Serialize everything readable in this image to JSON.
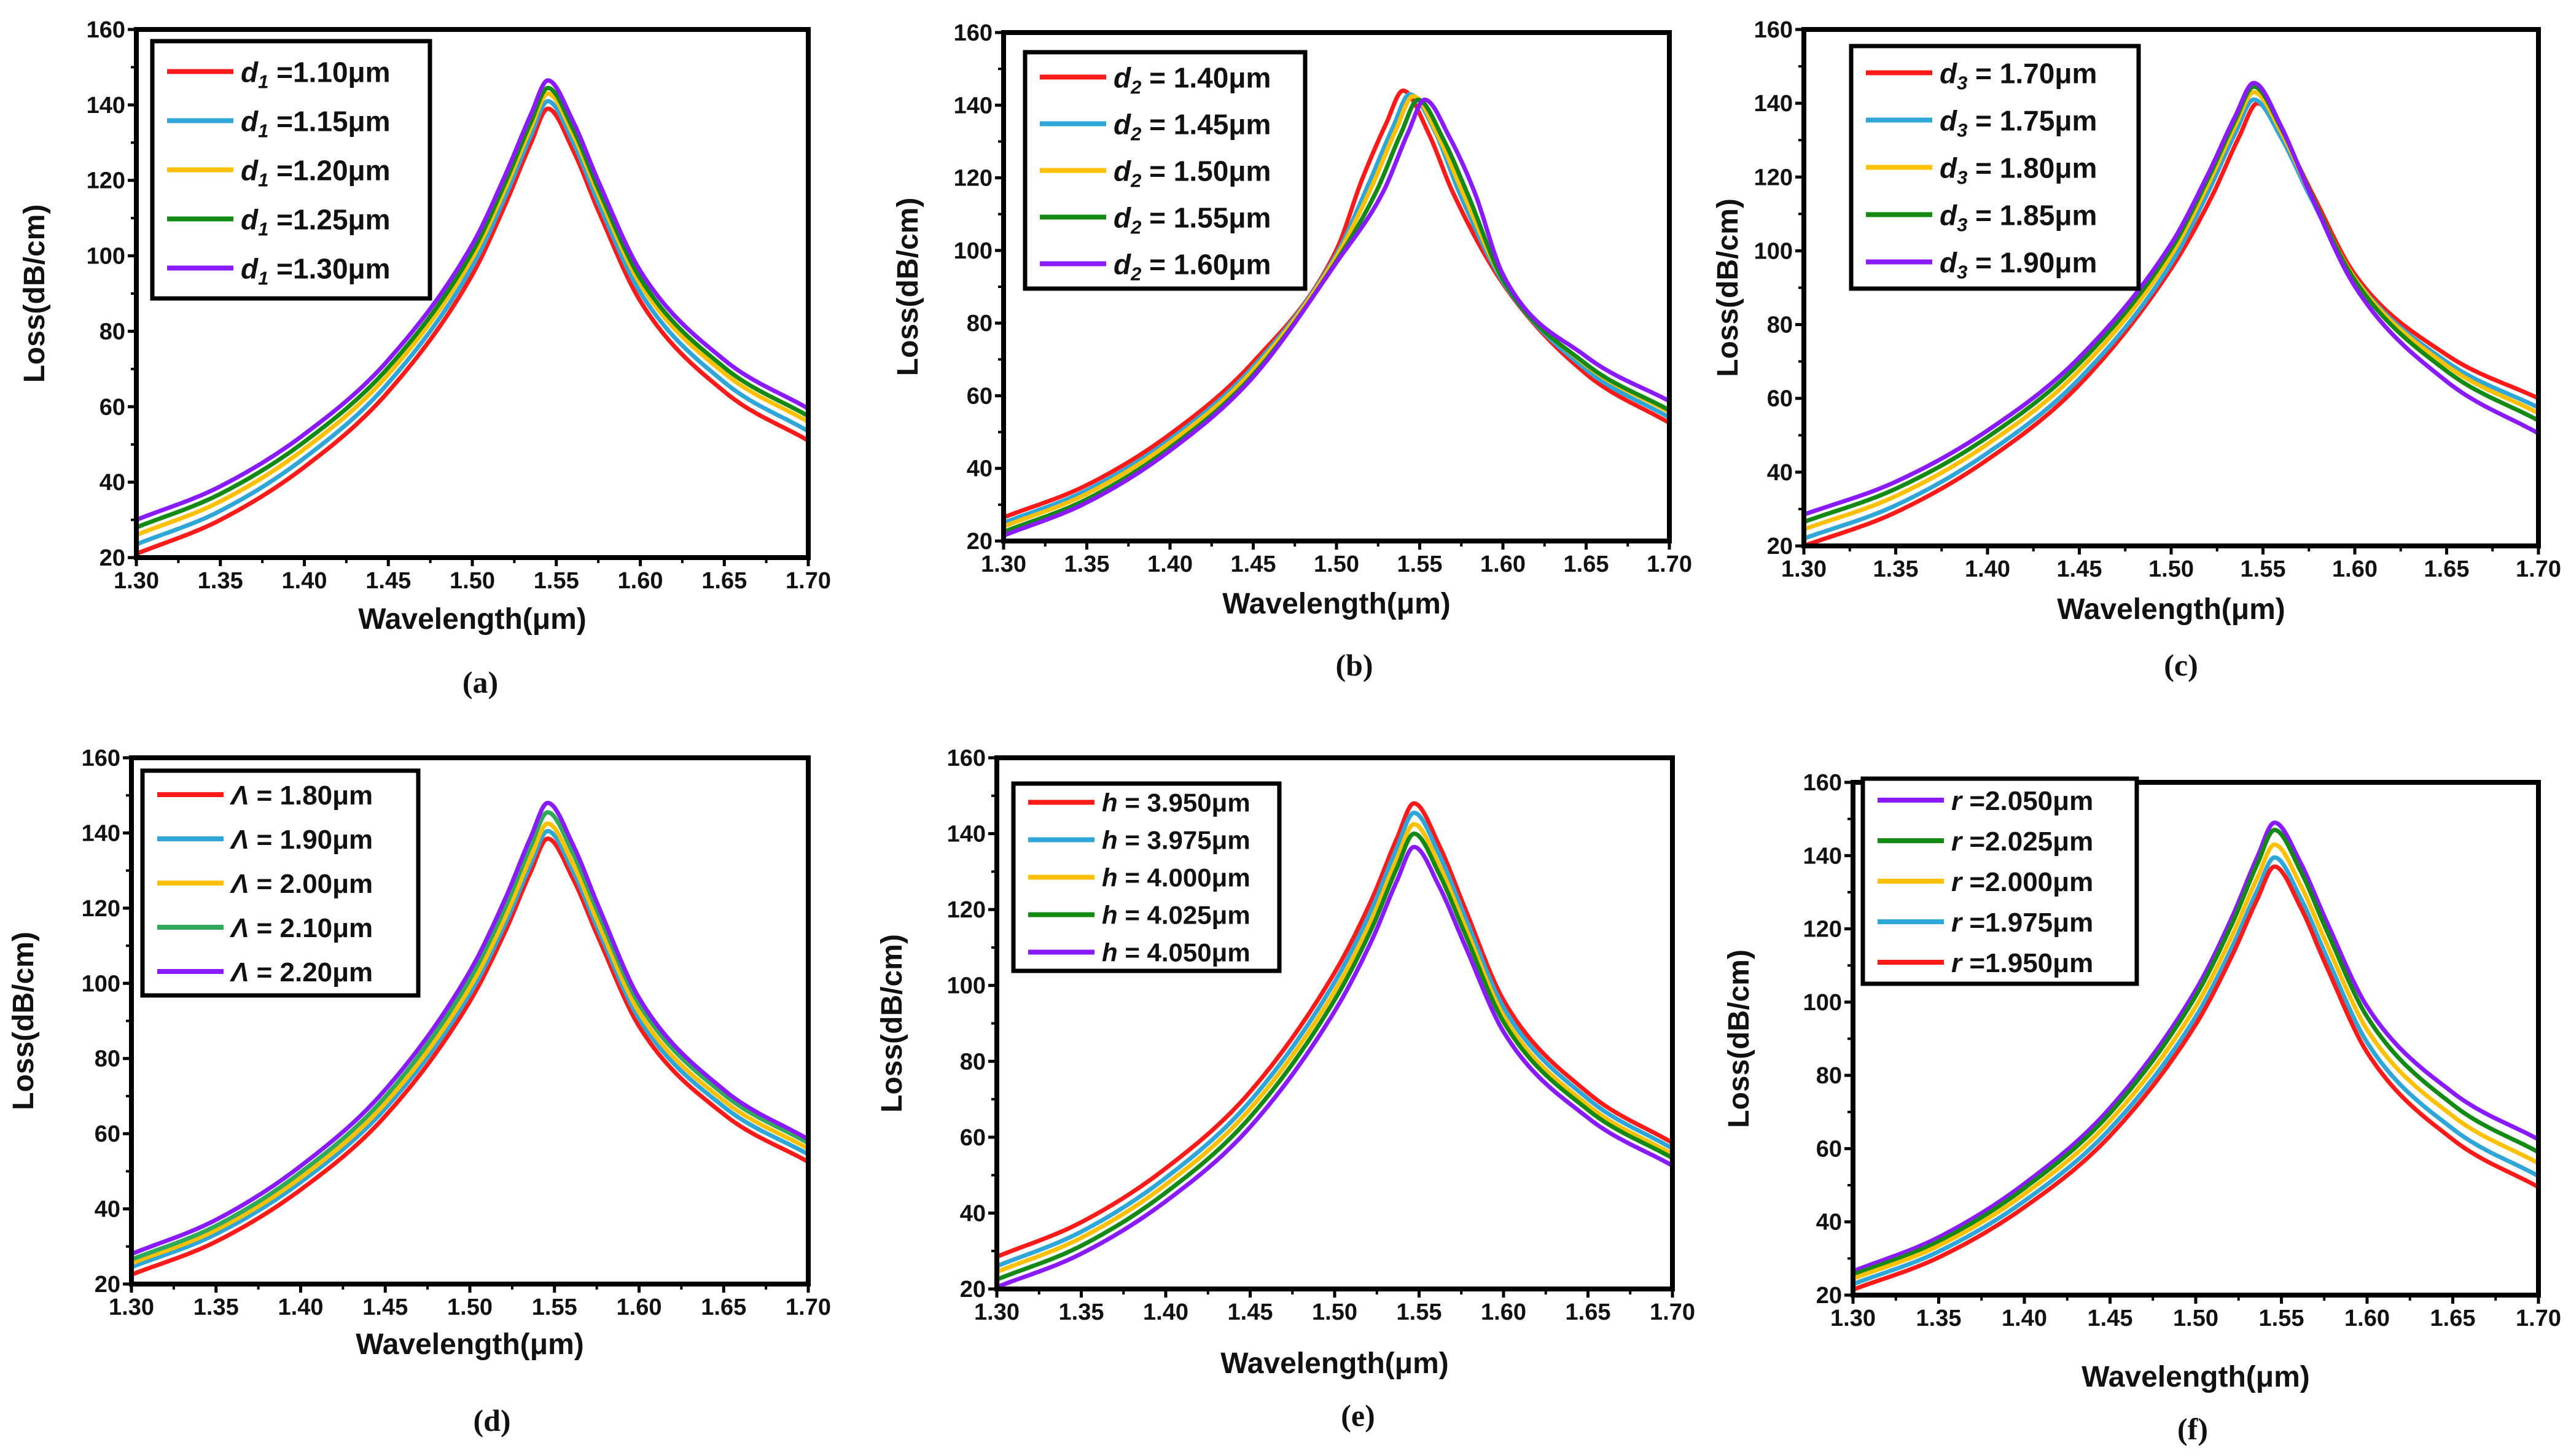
{
  "colors": {
    "red": "#ff1a1a",
    "blue": "#2ea6d8",
    "yellow": "#ffc000",
    "green": "#138a13",
    "green_light": "#2eaa5a",
    "purple": "#8a1aff"
  },
  "chart_data": [
    {
      "type": "line",
      "caption": "(a)",
      "xlabel": "Wavelength(μm)",
      "ylabel": "Loss(dB/cm)",
      "xlim": [
        1.3,
        1.7
      ],
      "ylim": [
        20,
        160
      ],
      "xticks": [
        "1.30",
        "1.35",
        "1.40",
        "1.45",
        "1.50",
        "1.55",
        "1.60",
        "1.65",
        "1.70"
      ],
      "yticks": [
        "20",
        "40",
        "60",
        "80",
        "100",
        "120",
        "140",
        "160"
      ],
      "legend_position": "top-left",
      "x": [
        1.3,
        1.35,
        1.4,
        1.45,
        1.5,
        1.52,
        1.535,
        1.545,
        1.56,
        1.575,
        1.6,
        1.65,
        1.7
      ],
      "series": [
        {
          "symbol": "d",
          "sub": "1",
          "value": " =1.10μm",
          "color": "red",
          "y": [
            21,
            30,
            44,
            64,
            95,
            114,
            130,
            139,
            128,
            112,
            88,
            64,
            51
          ]
        },
        {
          "symbol": "d",
          "sub": "1",
          "value": " =1.15μm",
          "color": "blue",
          "y": [
            23.5,
            32.4,
            46.4,
            66.3,
            97.2,
            116.1,
            132.1,
            141,
            130.1,
            114.1,
            90.3,
            66.5,
            53.5
          ]
        },
        {
          "symbol": "d",
          "sub": "1",
          "value": " =1.20μm",
          "color": "yellow",
          "y": [
            26,
            34.9,
            48.8,
            68.6,
            99.4,
            118.2,
            134.1,
            143,
            132.1,
            116.3,
            92.5,
            68.9,
            56
          ]
        },
        {
          "symbol": "d",
          "sub": "1",
          "value": " =1.25μm",
          "color": "green",
          "y": [
            28,
            36.9,
            50.7,
            70.4,
            101,
            119.8,
            135.6,
            144.5,
            133.6,
            117.8,
            94,
            70.4,
            57.5
          ]
        },
        {
          "symbol": "d",
          "sub": "1",
          "value": " =1.30μm",
          "color": "purple",
          "y": [
            30,
            38.9,
            52.7,
            72.4,
            103,
            121.8,
            137.6,
            146.5,
            135.6,
            119.8,
            96,
            72.4,
            59.5
          ]
        }
      ]
    },
    {
      "type": "line",
      "caption": "(b)",
      "xlabel": "Wavelength(μm)",
      "ylabel": "Loss(dB/cm)",
      "xlim": [
        1.3,
        1.7
      ],
      "ylim": [
        20,
        160
      ],
      "xticks": [
        "1.30",
        "1.35",
        "1.40",
        "1.45",
        "1.50",
        "1.55",
        "1.60",
        "1.65",
        "1.70"
      ],
      "yticks": [
        "20",
        "40",
        "60",
        "80",
        "100",
        "120",
        "140",
        "160"
      ],
      "legend_position": "top-left",
      "series": [
        {
          "symbol": "d",
          "sub": "2",
          "value": " = 1.40μm",
          "color": "red",
          "x": [
            1.3,
            1.35,
            1.4,
            1.45,
            1.5,
            1.515,
            1.53,
            1.54,
            1.555,
            1.57,
            1.6,
            1.65,
            1.7
          ],
          "y": [
            26.5,
            35.4,
            49.4,
            69.3,
            100.2,
            119.1,
            135.1,
            144,
            132.6,
            115.9,
            90.9,
            66,
            52.5
          ]
        },
        {
          "symbol": "d",
          "sub": "2",
          "value": " = 1.45μm",
          "color": "blue",
          "x": [
            1.3,
            1.35,
            1.4,
            1.45,
            1.5,
            1.519,
            1.534,
            1.544,
            1.559,
            1.574,
            1.6,
            1.65,
            1.7
          ],
          "y": [
            25,
            34,
            48,
            68,
            99,
            118,
            134,
            143,
            132.9,
            115.7,
            91.4,
            67.2,
            54
          ]
        },
        {
          "symbol": "d",
          "sub": "2",
          "value": " = 1.50μm",
          "color": "yellow",
          "x": [
            1.3,
            1.35,
            1.4,
            1.45,
            1.5,
            1.521,
            1.536,
            1.546,
            1.561,
            1.576,
            1.6,
            1.65,
            1.7
          ],
          "y": [
            24,
            33,
            47.1,
            67.1,
            98.3,
            117.4,
            133.5,
            142.5,
            131.6,
            115.8,
            92,
            68.4,
            55.5
          ]
        },
        {
          "symbol": "d",
          "sub": "2",
          "value": " = 1.55μm",
          "color": "green",
          "x": [
            1.3,
            1.35,
            1.4,
            1.45,
            1.5,
            1.524,
            1.539,
            1.549,
            1.564,
            1.579,
            1.6,
            1.65,
            1.7
          ],
          "y": [
            22.5,
            31.5,
            45.7,
            65.8,
            97.1,
            116.3,
            132.5,
            141.5,
            130.8,
            115.3,
            92,
            68.7,
            56
          ]
        },
        {
          "symbol": "d",
          "sub": "2",
          "value": " = 1.60μm",
          "color": "purple",
          "x": [
            1.3,
            1.35,
            1.4,
            1.45,
            1.5,
            1.528,
            1.543,
            1.553,
            1.568,
            1.583,
            1.6,
            1.65,
            1.7
          ],
          "y": [
            21.5,
            30.6,
            44.9,
            65.2,
            96.7,
            116.1,
            132.4,
            141.5,
            131.1,
            116,
            93.4,
            70.8,
            58.5
          ]
        }
      ]
    },
    {
      "type": "line",
      "caption": "(c)",
      "xlabel": "Wavelength(μm)",
      "ylabel": "Loss(dB/cm)",
      "xlim": [
        1.3,
        1.7
      ],
      "ylim": [
        20,
        160
      ],
      "xticks": [
        "1.30",
        "1.35",
        "1.40",
        "1.45",
        "1.50",
        "1.55",
        "1.60",
        "1.65",
        "1.70"
      ],
      "yticks": [
        "20",
        "40",
        "60",
        "80",
        "100",
        "120",
        "140",
        "160"
      ],
      "legend_position": "top-left",
      "x": [
        1.3,
        1.35,
        1.4,
        1.45,
        1.5,
        1.52,
        1.535,
        1.545,
        1.56,
        1.575,
        1.6,
        1.65,
        1.7
      ],
      "series": [
        {
          "symbol": "d",
          "sub": "3",
          "value": " = 1.70μm",
          "color": "red",
          "x": [
            1.3,
            1.35,
            1.4,
            1.45,
            1.5,
            1.522,
            1.537,
            1.547,
            1.562,
            1.577,
            1.6,
            1.65,
            1.7
          ],
          "y": [
            20,
            29.1,
            43.4,
            63.7,
            95.2,
            114.6,
            130.9,
            140,
            130,
            115.4,
            93.6,
            71.8,
            60
          ]
        },
        {
          "symbol": "d",
          "sub": "3",
          "value": " = 1.75μm",
          "color": "blue",
          "y": [
            22,
            31,
            45.2,
            65.3,
            96.6,
            115.8,
            132,
            141,
            130.6,
            115.4,
            92.6,
            69.9,
            57.5
          ]
        },
        {
          "symbol": "d",
          "sub": "3",
          "value": " = 1.80μm",
          "color": "yellow",
          "y": [
            24.5,
            33.5,
            47.6,
            67.6,
            98.8,
            117.9,
            134,
            143,
            132.1,
            116.3,
            92.5,
            68.9,
            56
          ]
        },
        {
          "symbol": "d",
          "sub": "3",
          "value": " = 1.85μm",
          "color": "green",
          "y": [
            26.5,
            35.5,
            49.5,
            69.5,
            100.5,
            119.5,
            135.5,
            144.5,
            133.2,
            116.7,
            92,
            67.4,
            54
          ]
        },
        {
          "symbol": "d",
          "sub": "3",
          "value": " = 1.90μm",
          "color": "purple",
          "y": [
            28.5,
            37.4,
            51.3,
            71.1,
            101.9,
            120.7,
            136.6,
            145.5,
            133.6,
            116.3,
            90.4,
            64.6,
            50.5
          ]
        }
      ]
    },
    {
      "type": "line",
      "caption": "(d)",
      "xlabel": "Wavelength(μm)",
      "ylabel": "Loss(dB/cm)",
      "xlim": [
        1.3,
        1.7
      ],
      "ylim": [
        20,
        160
      ],
      "xticks": [
        "1.30",
        "1.35",
        "1.40",
        "1.45",
        "1.50",
        "1.55",
        "1.60",
        "1.65",
        "1.70"
      ],
      "yticks": [
        "20",
        "40",
        "60",
        "80",
        "100",
        "120",
        "140",
        "160"
      ],
      "legend_position": "top-left",
      "x": [
        1.3,
        1.35,
        1.4,
        1.45,
        1.5,
        1.521,
        1.536,
        1.546,
        1.561,
        1.576,
        1.6,
        1.65,
        1.7
      ],
      "series": [
        {
          "symbol": "Λ",
          "sub": "",
          "value": " = 1.80μm",
          "color": "red",
          "y": [
            22.5,
            31.3,
            45.1,
            64.7,
            95.2,
            113.9,
            129.7,
            138.5,
            127.8,
            112.1,
            88.6,
            65.2,
            52.5
          ]
        },
        {
          "symbol": "Λ",
          "sub": "",
          "value": " = 1.90μm",
          "color": "blue",
          "y": [
            24.5,
            33.3,
            47.1,
            66.7,
            97.2,
            115.9,
            131.7,
            140.5,
            129.8,
            114.1,
            90.6,
            67.2,
            54.5
          ]
        },
        {
          "symbol": "Λ",
          "sub": "",
          "value": " = 2.00μm",
          "color": "yellow",
          "y": [
            25.5,
            34.4,
            48.3,
            68.1,
            98.9,
            117.7,
            133.6,
            142.5,
            131.7,
            115.9,
            92.3,
            68.8,
            56
          ]
        },
        {
          "symbol": "Λ",
          "sub": "",
          "value": " = 2.10μm",
          "color": "green_light",
          "y": [
            26.5,
            35.5,
            49.7,
            69.8,
            101.1,
            120.3,
            136.5,
            145.5,
            134.5,
            118.5,
            94.5,
            70.5,
            57.5
          ]
        },
        {
          "symbol": "Λ",
          "sub": "",
          "value": " = 2.20μm",
          "color": "purple",
          "y": [
            28,
            37.1,
            51.4,
            71.7,
            103.2,
            122.6,
            138.9,
            148,
            136.8,
            120.5,
            96.1,
            71.7,
            58.5
          ]
        }
      ]
    },
    {
      "type": "line",
      "caption": "(e)",
      "xlabel": "Wavelength(μm)",
      "ylabel": "Loss(dB/cm)",
      "xlim": [
        1.3,
        1.7
      ],
      "ylim": [
        20,
        160
      ],
      "xticks": [
        "1.30",
        "1.35",
        "1.40",
        "1.45",
        "1.50",
        "1.55",
        "1.60",
        "1.65",
        "1.70"
      ],
      "yticks": [
        "20",
        "40",
        "60",
        "80",
        "100",
        "120",
        "140",
        "160"
      ],
      "legend_position": "top-left",
      "x": [
        1.3,
        1.35,
        1.4,
        1.45,
        1.5,
        1.522,
        1.537,
        1.547,
        1.562,
        1.577,
        1.6,
        1.65,
        1.7
      ],
      "series": [
        {
          "symbol": "h",
          "sub": "",
          "value": " = 3.950μm",
          "color": "red",
          "y": [
            28.5,
            37.6,
            51.8,
            72,
            103.4,
            122.7,
            138.9,
            148,
            136.8,
            120.5,
            96.1,
            71.7,
            58.5
          ]
        },
        {
          "symbol": "h",
          "sub": "",
          "value": " = 3.975μm",
          "color": "blue",
          "y": [
            26,
            35.1,
            49.3,
            69.5,
            100.9,
            120.2,
            136.4,
            145.5,
            134.4,
            118.3,
            94.2,
            70.1,
            57
          ]
        },
        {
          "symbol": "h",
          "sub": "",
          "value": " = 4.000μm",
          "color": "yellow",
          "y": [
            24.5,
            33.5,
            47.5,
            67.5,
            98.5,
            117.5,
            133.5,
            142.5,
            131.6,
            115.8,
            92,
            68.4,
            55.5
          ]
        },
        {
          "symbol": "h",
          "sub": "",
          "value": " = 4.025μm",
          "color": "green",
          "y": [
            22.5,
            31.4,
            45.4,
            65.3,
            96.2,
            115.1,
            131.1,
            140,
            129.3,
            113.8,
            90.4,
            67.2,
            54.5
          ]
        },
        {
          "symbol": "h",
          "sub": "",
          "value": " = 4.050μm",
          "color": "purple",
          "y": [
            20.5,
            29.3,
            43.1,
            62.7,
            93.2,
            111.9,
            127.7,
            136.5,
            126,
            110.7,
            87.8,
            65.1,
            52.5
          ]
        }
      ]
    },
    {
      "type": "line",
      "caption": "(f)",
      "xlabel": "Wavelength(μm)",
      "ylabel": "Loss(dB/cm)",
      "xlim": [
        1.3,
        1.7
      ],
      "ylim": [
        20,
        160
      ],
      "xticks": [
        "1.30",
        "1.35",
        "1.40",
        "1.45",
        "1.50",
        "1.55",
        "1.60",
        "1.65",
        "1.70"
      ],
      "yticks": [
        "20",
        "40",
        "60",
        "80",
        "100",
        "120",
        "140",
        "160"
      ],
      "legend_position": "top-left",
      "x": [
        1.3,
        1.35,
        1.4,
        1.45,
        1.5,
        1.521,
        1.536,
        1.546,
        1.561,
        1.576,
        1.6,
        1.65,
        1.7
      ],
      "series": [
        {
          "symbol": "r",
          "sub": "",
          "value": " =2.050μm",
          "color": "purple",
          "y": [
            26.5,
            35.8,
            50.4,
            71.1,
            103.3,
            123,
            139.7,
            149,
            138.2,
            122.4,
            98.8,
            75.3,
            62.5
          ]
        },
        {
          "symbol": "r",
          "sub": "",
          "value": " =2.025μm",
          "color": "green",
          "y": [
            25.5,
            34.7,
            49.2,
            69.7,
            101.7,
            121.2,
            137.8,
            147,
            136,
            120,
            96,
            72,
            59
          ]
        },
        {
          "symbol": "r",
          "sub": "",
          "value": " =2.000μm",
          "color": "yellow",
          "y": [
            24.5,
            33.5,
            47.6,
            67.6,
            98.8,
            117.9,
            134,
            143,
            132.1,
            116.3,
            92.5,
            68.9,
            56
          ]
        },
        {
          "symbol": "r",
          "sub": "",
          "value": " =1.975μm",
          "color": "blue",
          "y": [
            23,
            31.9,
            45.7,
            65.4,
            96,
            114.8,
            130.6,
            139.5,
            128.6,
            112.8,
            89,
            65.4,
            52.5
          ]
        },
        {
          "symbol": "r",
          "sub": "",
          "value": " =1.950μm",
          "color": "red",
          "y": [
            21.5,
            30.3,
            44,
            63.5,
            93.9,
            112.5,
            128.2,
            137,
            126.1,
            110.1,
            86.3,
            62.5,
            49.5
          ]
        }
      ]
    }
  ]
}
